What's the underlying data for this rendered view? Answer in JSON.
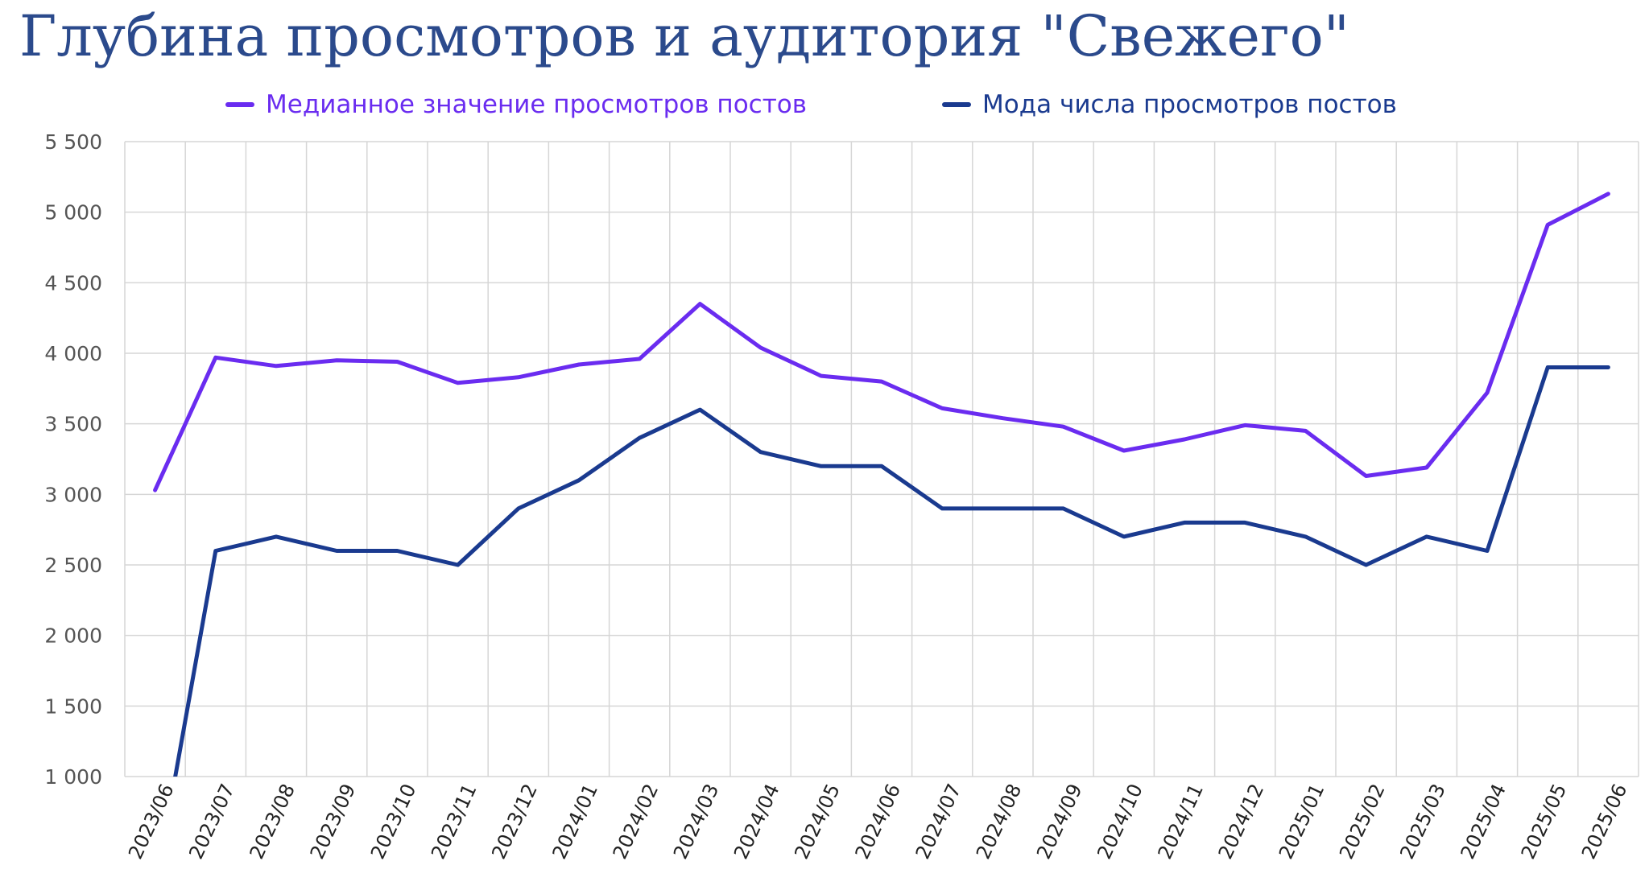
{
  "chart_data": {
    "type": "line",
    "title": "Глубина просмотров и аудитория \"Свежего\"",
    "categories": [
      "2023/06",
      "2023/07",
      "2023/08",
      "2023/09",
      "2023/10",
      "2023/11",
      "2023/12",
      "2024/01",
      "2024/02",
      "2024/03",
      "2024/04",
      "2024/05",
      "2024/06",
      "2024/07",
      "2024/08",
      "2024/09",
      "2024/10",
      "2024/11",
      "2024/12",
      "2025/01",
      "2025/02",
      "2025/03",
      "2025/04",
      "2025/05",
      "2025/06"
    ],
    "series": [
      {
        "name": "Медианное значение просмотров постов",
        "color": "#6a2cf0",
        "values": [
          3030,
          3970,
          3910,
          3950,
          3940,
          3790,
          3830,
          3920,
          3960,
          4350,
          4040,
          3840,
          3800,
          3610,
          3540,
          3480,
          3310,
          3390,
          3490,
          3450,
          3130,
          3190,
          3720,
          4910,
          5130
        ]
      },
      {
        "name": "Мода числа просмотров постов",
        "color": "#1a3a8f",
        "values": [
          200,
          2600,
          2700,
          2600,
          2600,
          2500,
          2900,
          3100,
          3400,
          3600,
          3300,
          3200,
          3200,
          2900,
          2900,
          2900,
          2700,
          2800,
          2800,
          2700,
          2500,
          2700,
          2600,
          3900,
          3900
        ]
      }
    ],
    "ylim": [
      1000,
      5500
    ],
    "yticks": [
      1000,
      1500,
      2000,
      2500,
      3000,
      3500,
      4000,
      4500,
      5000,
      5500
    ],
    "ytick_labels": [
      "1 000",
      "1 500",
      "2 000",
      "2 500",
      "3 000",
      "3 500",
      "4 000",
      "4 500",
      "5 000",
      "5 500"
    ],
    "xlabel": "",
    "ylabel": "",
    "grid": true,
    "legend_position": "top"
  }
}
